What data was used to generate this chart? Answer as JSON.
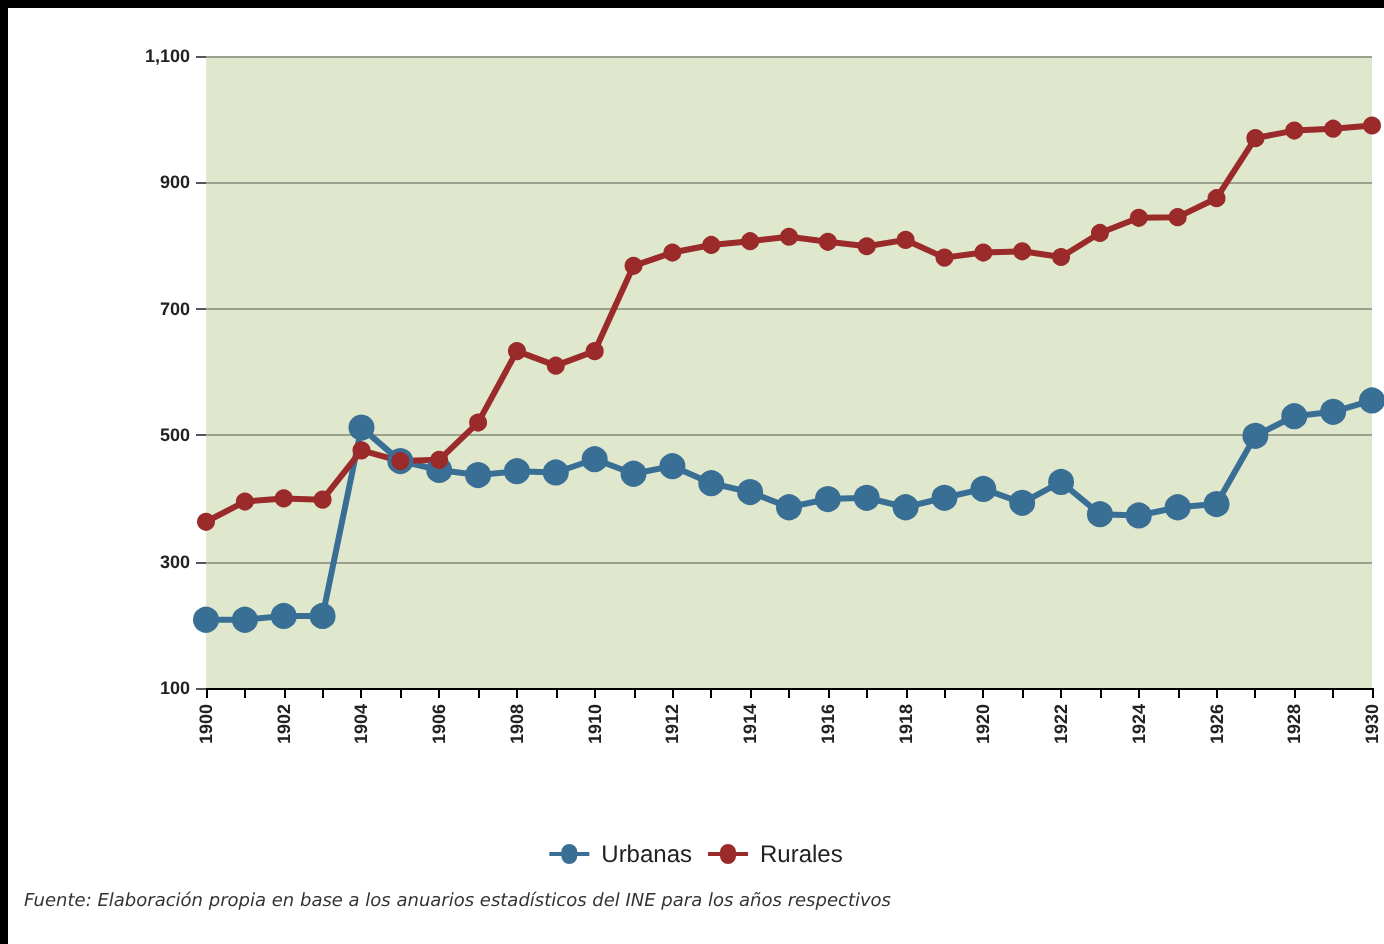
{
  "chart_data": {
    "type": "line",
    "categories": [
      "1900",
      null,
      "1902",
      null,
      "1904",
      null,
      "1906",
      null,
      "1908",
      null,
      "1910",
      null,
      "1912",
      null,
      "1914",
      null,
      "1916",
      null,
      "1918",
      null,
      "1920",
      null,
      "1922",
      null,
      "1924",
      null,
      "1926",
      null,
      "1928",
      null,
      "1930"
    ],
    "series": [
      {
        "name": "Urbanas",
        "color": "#3a6f95",
        "values": [
          208,
          208,
          214,
          214,
          512,
          459,
          445,
          437,
          443,
          441,
          462,
          439,
          451,
          424,
          410,
          386,
          399,
          401,
          386,
          401,
          415,
          393,
          426,
          375,
          373,
          386,
          391,
          499,
          530,
          537,
          555
        ]
      },
      {
        "name": "Rurales",
        "color": "#9b2a2a",
        "values": [
          363,
          395,
          400,
          398,
          476,
          459,
          461,
          520,
          633,
          610,
          633,
          768,
          789,
          801,
          807,
          814,
          806,
          799,
          809,
          781,
          789,
          791,
          782,
          820,
          844,
          845,
          875,
          970,
          982,
          985,
          990
        ]
      }
    ],
    "ylim": [
      100,
      1100
    ],
    "yticks": [
      100,
      300,
      500,
      700,
      900,
      {
        "value": 1100,
        "label": "1,100"
      }
    ],
    "grid": "y",
    "legend": "bottom",
    "marker": "circle",
    "line_style": "solid",
    "annotations": [
      "Fuente: Elaboración propia en base a los anuarios estadísticos del INE para los años respectivos"
    ]
  }
}
